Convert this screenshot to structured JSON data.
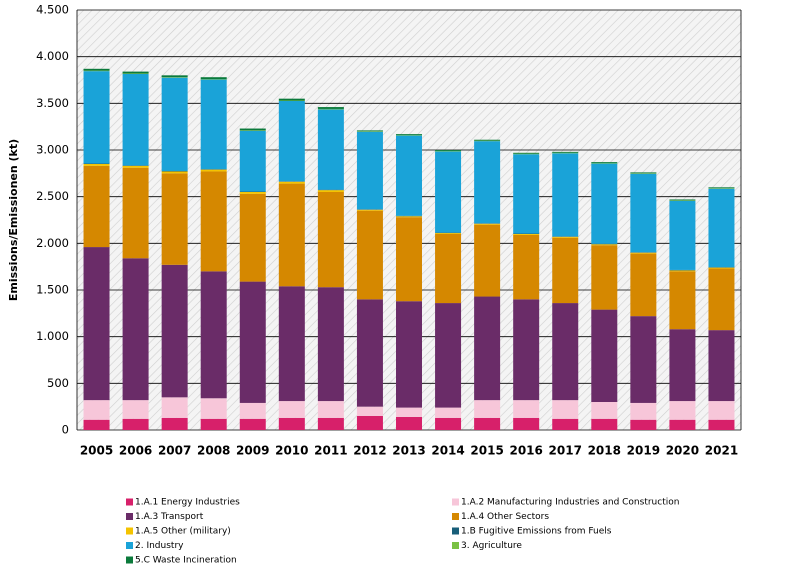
{
  "chart_data": {
    "type": "bar",
    "stacked": true,
    "y_label": "Emissions/Emissionen (kt)",
    "categories": [
      "2005",
      "2006",
      "2007",
      "2008",
      "2009",
      "2010",
      "2011",
      "2012",
      "2013",
      "2014",
      "2015",
      "2016",
      "2017",
      "2018",
      "2019",
      "2020",
      "2021"
    ],
    "series": [
      {
        "name": "1.A.1 Energy Industries",
        "color": "#d7206a",
        "values": [
          110,
          120,
          130,
          120,
          120,
          130,
          130,
          150,
          140,
          130,
          130,
          130,
          120,
          120,
          110,
          110,
          110
        ]
      },
      {
        "name": "1.A.2 Manufacturing Industries and Construction",
        "color": "#f7c6d9",
        "values": [
          210,
          200,
          220,
          220,
          170,
          180,
          180,
          100,
          100,
          110,
          190,
          190,
          200,
          180,
          180,
          200,
          200
        ]
      },
      {
        "name": "1.A.3 Transport",
        "color": "#6a2c68",
        "values": [
          1640,
          1520,
          1420,
          1360,
          1300,
          1230,
          1220,
          1150,
          1140,
          1120,
          1110,
          1080,
          1040,
          990,
          930,
          770,
          760
        ]
      },
      {
        "name": "1.A.4 Other Sectors",
        "color": "#d58800",
        "values": [
          870,
          970,
          980,
          1070,
          940,
          1100,
          1020,
          950,
          900,
          740,
          770,
          690,
          700,
          690,
          670,
          620,
          660
        ]
      },
      {
        "name": "1.A.5 Other (military)",
        "color": "#f4c300",
        "values": [
          20,
          20,
          20,
          20,
          20,
          20,
          20,
          10,
          10,
          10,
          10,
          10,
          10,
          10,
          10,
          10,
          10
        ]
      },
      {
        "name": "1.B Fugitive Emissions from Fuels",
        "color": "#185e79",
        "values": [
          5,
          5,
          5,
          5,
          5,
          5,
          5,
          5,
          5,
          5,
          5,
          5,
          5,
          5,
          5,
          5,
          5
        ]
      },
      {
        "name": "2. Industry",
        "color": "#1aa3d8",
        "values": [
          990,
          980,
          1000,
          960,
          650,
          860,
          860,
          830,
          860,
          870,
          880,
          850,
          890,
          860,
          840,
          740,
          840
        ]
      },
      {
        "name": "3. Agriculture",
        "color": "#7ac143",
        "values": [
          5,
          5,
          5,
          5,
          5,
          5,
          5,
          5,
          5,
          5,
          5,
          5,
          5,
          5,
          5,
          5,
          5
        ]
      },
      {
        "name": "5.C Waste Incineration",
        "color": "#0b7a3b",
        "values": [
          20,
          20,
          20,
          20,
          20,
          20,
          20,
          10,
          10,
          10,
          10,
          10,
          10,
          10,
          10,
          10,
          10
        ]
      }
    ],
    "ylim": [
      0,
      4500
    ],
    "yticks": [
      0,
      500,
      {
        "value": 1000,
        "label": "1.000"
      },
      {
        "value": 1500,
        "label": "1.500"
      },
      {
        "value": 2000,
        "label": "2.000"
      },
      {
        "value": 2500,
        "label": "2.500"
      },
      {
        "value": 3000,
        "label": "3.000"
      },
      {
        "value": 3500,
        "label": "3.500"
      },
      {
        "value": 4000,
        "label": "4.000"
      },
      {
        "value": 4500,
        "label": "4.500"
      }
    ],
    "grid": true
  }
}
